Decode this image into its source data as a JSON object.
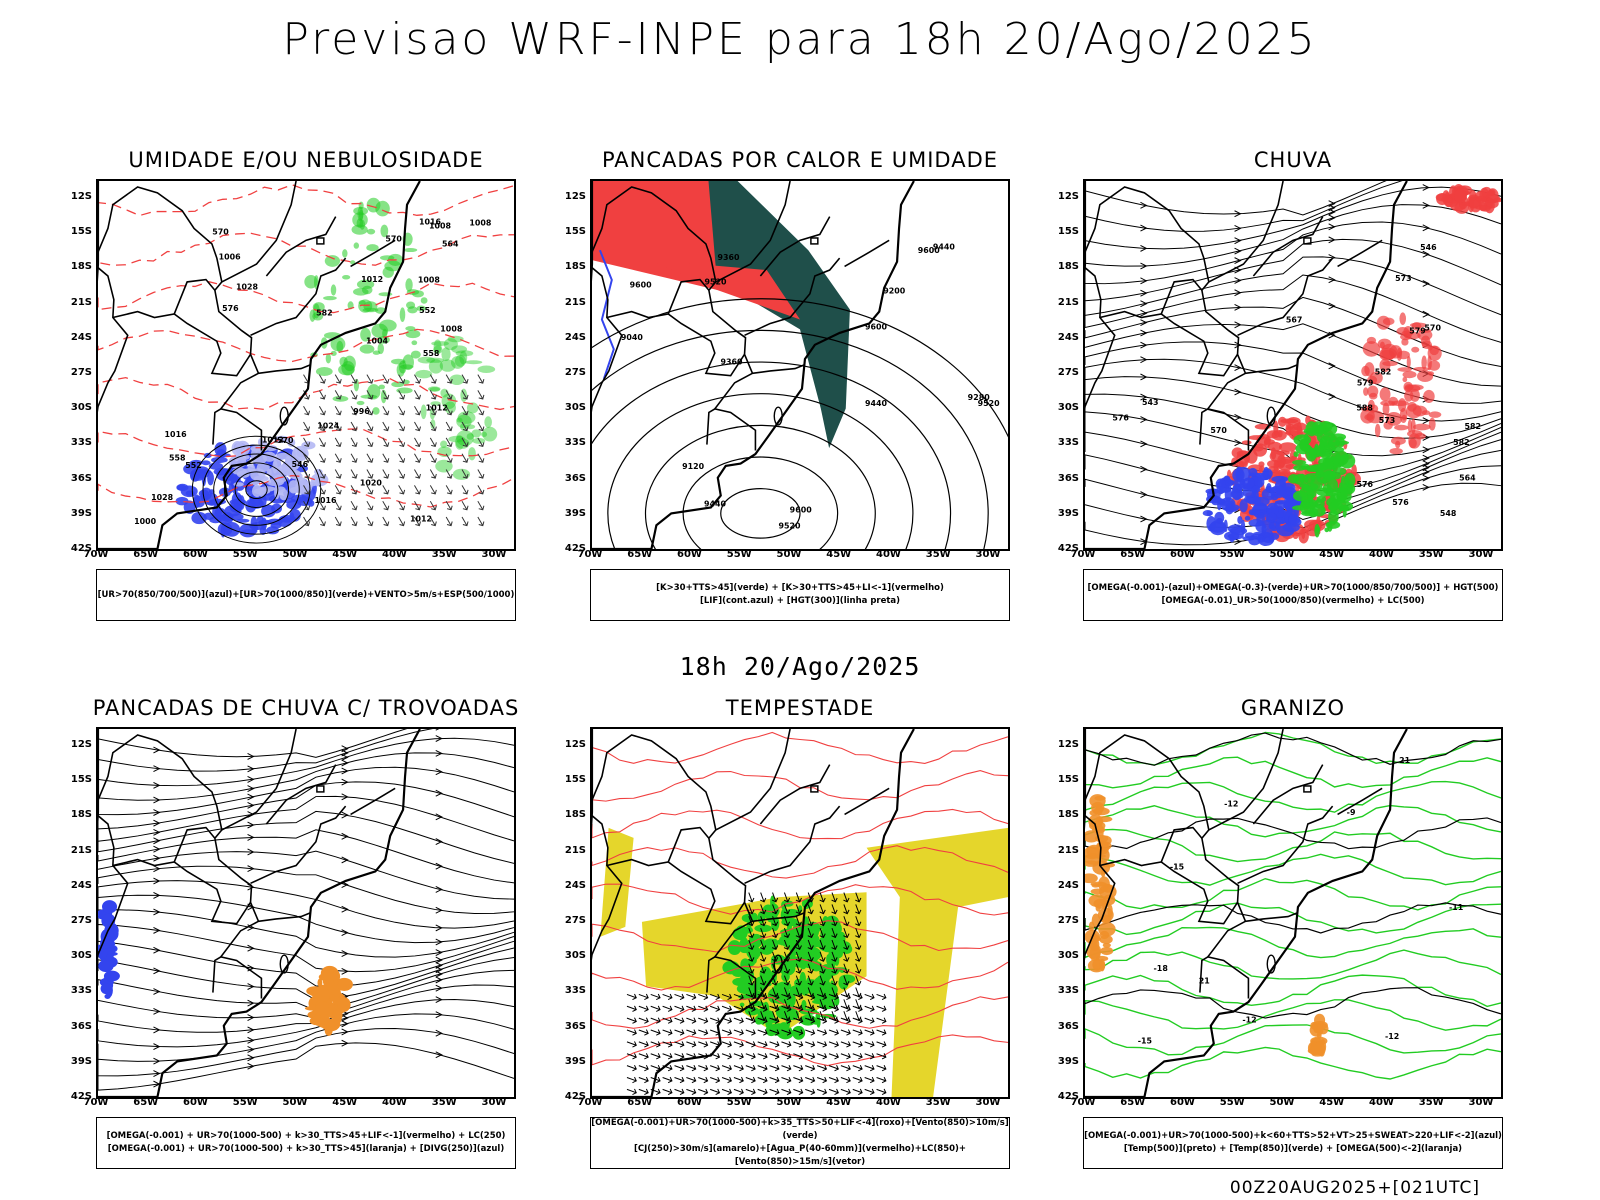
{
  "main_title": "Previsao WRF-INPE  para 18h 20/Ago/2025",
  "middle_caption": "18h 20/Ago/2025",
  "footer_stamp": "00Z20AUG2025+[021UTC]",
  "axes": {
    "lat_ticks": [
      "12S",
      "15S",
      "18S",
      "21S",
      "24S",
      "27S",
      "30S",
      "33S",
      "36S",
      "39S",
      "42S"
    ],
    "lon_ticks": [
      "70W",
      "65W",
      "60W",
      "55W",
      "50W",
      "45W",
      "40W",
      "35W",
      "30W"
    ]
  },
  "colors": {
    "blue": "#3344ee",
    "light_blue": "#b4b8f4",
    "green": "#22cc22",
    "red": "#f04040",
    "dark_teal": "#1f4f4a",
    "yellow": "#e5d62b",
    "orange": "#f0902a"
  },
  "panels": [
    {
      "id": "umidade",
      "title": "UMIDADE E/OU NEBULOSIDADE",
      "legend": [
        "[UR>70(850/700/500)](azul)+[UR>70(1000/850)](verde)+VENTO>5m/s+ESP(500/1000)"
      ],
      "contour_labels": [
        "1008",
        "1006",
        "1008",
        "1012",
        "1008",
        "1016",
        "1016",
        "1012",
        "1020",
        "1016",
        "1024",
        "1012",
        "1028",
        "1012",
        "1008",
        "1000",
        "1004",
        "996",
        "1028",
        "570",
        "576",
        "570",
        "564",
        "558",
        "552",
        "546",
        "582",
        "570",
        "558",
        "552"
      ]
    },
    {
      "id": "pancadas_calor",
      "title": "PANCADAS POR CALOR E UMIDADE",
      "legend": [
        "[K>30+TTS>45](verde) + [K>30+TTS>45+LI<-1](vermelho)",
        "[LIF](cont.azul) + [HGT(300)](linha preta)"
      ],
      "contour_labels": [
        "9600",
        "9520",
        "9600",
        "9600",
        "9600",
        "9520",
        "9440",
        "9360",
        "9440",
        "9520",
        "9280",
        "9360",
        "9200",
        "9120",
        "9040",
        "9440"
      ]
    },
    {
      "id": "chuva",
      "title": "CHUVA",
      "legend": [
        "[OMEGA(-0.001)-(azul)+OMEGA(-0.3)-(verde)+UR>70(1000/850/700/500)] + HGT(500)",
        "[OMEGA(-0.01)_UR>50(1000/850)(vermelho) + LC(500)"
      ],
      "contour_labels": [
        "588",
        "582",
        "579",
        "582",
        "576",
        "573",
        "570",
        "567",
        "564",
        "576",
        "582",
        "579",
        "576",
        "573",
        "570",
        "548",
        "546",
        "543"
      ]
    },
    {
      "id": "pancadas_trovoadas",
      "title": "PANCADAS DE CHUVA C/ TROVOADAS",
      "legend": [
        "[OMEGA(-0.001) + UR>70(1000-500) + k>30_TTS>45+LIF<-1](vermelho) + LC(250)",
        "[OMEGA(-0.001) + UR>70(1000-500) + k>30_TTS>45](laranja) + [DIVG(250)](azul)"
      ]
    },
    {
      "id": "tempestade",
      "title": "TEMPESTADE",
      "legend": [
        "[OMEGA(-0.001)+UR>70(1000-500)+k>35_TTS>50+LIF<-4](roxo)+[Vento(850)>10m/s](verde)",
        "[CJ(250)>30m/s](amarelo)+[Agua_P(40-60mm)](vermelho)+LC(850)+[Vento(850)>15m/s](vetor)"
      ]
    },
    {
      "id": "granizo",
      "title": "GRANIZO",
      "legend": [
        "[OMEGA(-0.001)+UR>70(1000-500)+k<60+TTS>52+VT>25+SWEAT>220+LIF<-2](azul)",
        "[Temp(500)](preto) + [Temp(850)](verde) + [OMEGA(500)<-2](laranja)"
      ],
      "contour_labels": [
        "21",
        "21",
        "-12",
        "-12",
        "-15",
        "-18",
        "-11",
        "-15",
        "-12",
        "-9"
      ]
    }
  ]
}
